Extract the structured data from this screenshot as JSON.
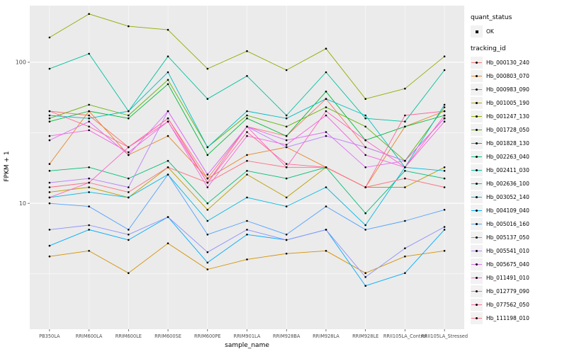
{
  "figure": {
    "xlabel": "sample_name",
    "ylabel": "FPKM + 1",
    "legend": {
      "quant_title": "quant_status",
      "quant_ok_label": "OK",
      "tracking_title": "tracking_id"
    }
  },
  "chart_data": {
    "type": "line",
    "title": "",
    "xlabel": "sample_name",
    "ylabel": "FPKM + 1",
    "yscale": "log10",
    "ylim": [
      1.28,
      252
    ],
    "y_major_ticks": [
      10,
      100
    ],
    "y_minor_gridlines": [
      3.162,
      31.62
    ],
    "grid": true,
    "legend_position": "right",
    "panel_background": "#EBEBEB",
    "gridline_color": "#FFFFFF",
    "point_color": "#000000",
    "tick_label_color": "#4D4D4D",
    "categories": [
      "PB350LA",
      "RRIM600LA",
      "RRIM600LE",
      "RRIM600SE",
      "RRIM600PE",
      "RRIM901LA",
      "RRIM928BA",
      "RRIM928LA",
      "RRIM928LE",
      "RRII105LA_Control",
      "RRII105LA_Stressed"
    ],
    "series": [
      {
        "name": "Hb_000130_240",
        "color": "#F8766D",
        "values": [
          45,
          42,
          25,
          40,
          15,
          35,
          30,
          55,
          25,
          20,
          40
        ]
      },
      {
        "name": "Hb_000803_070",
        "color": "#E88526",
        "values": [
          19,
          45,
          22,
          30,
          15,
          22,
          25,
          18,
          13,
          35,
          45
        ]
      },
      {
        "name": "Hb_000983_090",
        "color": "#D39200",
        "values": [
          4.2,
          4.6,
          3.2,
          5.2,
          3.4,
          4.0,
          4.4,
          4.6,
          3.2,
          4.2,
          4.6
        ]
      },
      {
        "name": "Hb_001005_190",
        "color": "#B79F00",
        "values": [
          12,
          13,
          11,
          18,
          9,
          16,
          11,
          18,
          13,
          13,
          18
        ]
      },
      {
        "name": "Hb_001247_130",
        "color": "#93AA00",
        "values": [
          150,
          220,
          180,
          170,
          90,
          120,
          88,
          125,
          55,
          65,
          110
        ]
      },
      {
        "name": "Hb_001728_050",
        "color": "#5EB300",
        "values": [
          40,
          50,
          42,
          75,
          25,
          42,
          35,
          48,
          35,
          20,
          48
        ]
      },
      {
        "name": "Hb_001828_130",
        "color": "#00BA38",
        "values": [
          38,
          45,
          40,
          70,
          22,
          40,
          30,
          62,
          28,
          35,
          42
        ]
      },
      {
        "name": "Hb_002263_040",
        "color": "#00BF74",
        "values": [
          17,
          18,
          15,
          20,
          10,
          17,
          15,
          18,
          8.5,
          17,
          15
        ]
      },
      {
        "name": "Hb_002411_030",
        "color": "#00C19F",
        "values": [
          90,
          115,
          45,
          110,
          55,
          80,
          42,
          85,
          40,
          38,
          88
        ]
      },
      {
        "name": "Hb_002636_100",
        "color": "#00BFC4",
        "values": [
          42,
          40,
          45,
          85,
          25,
          45,
          40,
          55,
          42,
          18,
          50
        ]
      },
      {
        "name": "Hb_003052_140",
        "color": "#00B9E3",
        "values": [
          11,
          12,
          11,
          16,
          7.5,
          11,
          9.5,
          13,
          7,
          18,
          17
        ]
      },
      {
        "name": "Hb_004109_040",
        "color": "#00ADFA",
        "values": [
          5,
          6.5,
          5.5,
          8,
          3.8,
          6,
          5.5,
          6.5,
          2.6,
          3.2,
          6.5
        ]
      },
      {
        "name": "Hb_005016_160",
        "color": "#4FA1FF",
        "values": [
          10,
          9.5,
          6.5,
          16,
          6,
          7.5,
          6,
          9.5,
          6.5,
          7.5,
          9
        ]
      },
      {
        "name": "Hb_005137_050",
        "color": "#8F91FF",
        "values": [
          6.5,
          7,
          6,
          8,
          4.5,
          6.5,
          5.5,
          6.5,
          3,
          4.8,
          6.8
        ]
      },
      {
        "name": "Hb_005541_010",
        "color": "#BC81FF",
        "values": [
          14,
          15,
          13,
          45,
          16,
          35,
          25,
          30,
          25,
          20,
          40
        ]
      },
      {
        "name": "Hb_005675_040",
        "color": "#E16DF7",
        "values": [
          28,
          38,
          22,
          45,
          16,
          35,
          28,
          32,
          18,
          20,
          40
        ]
      },
      {
        "name": "Hb_011491_010",
        "color": "#F763DF",
        "values": [
          30,
          33,
          23,
          38,
          13,
          30,
          26,
          42,
          22,
          18,
          38
        ]
      },
      {
        "name": "Hb_012779_090",
        "color": "#FF61BF",
        "values": [
          11,
          14,
          25,
          38,
          14,
          35,
          18,
          45,
          28,
          18,
          42
        ]
      },
      {
        "name": "Hb_077562_050",
        "color": "#FF689D",
        "values": [
          45,
          35,
          25,
          40,
          14,
          32,
          19,
          18,
          13,
          42,
          45
        ]
      },
      {
        "name": "Hb_111198_010",
        "color": "#FD7083",
        "values": [
          13,
          14,
          12,
          18,
          14,
          20,
          18,
          18,
          13,
          15,
          13
        ]
      }
    ]
  }
}
